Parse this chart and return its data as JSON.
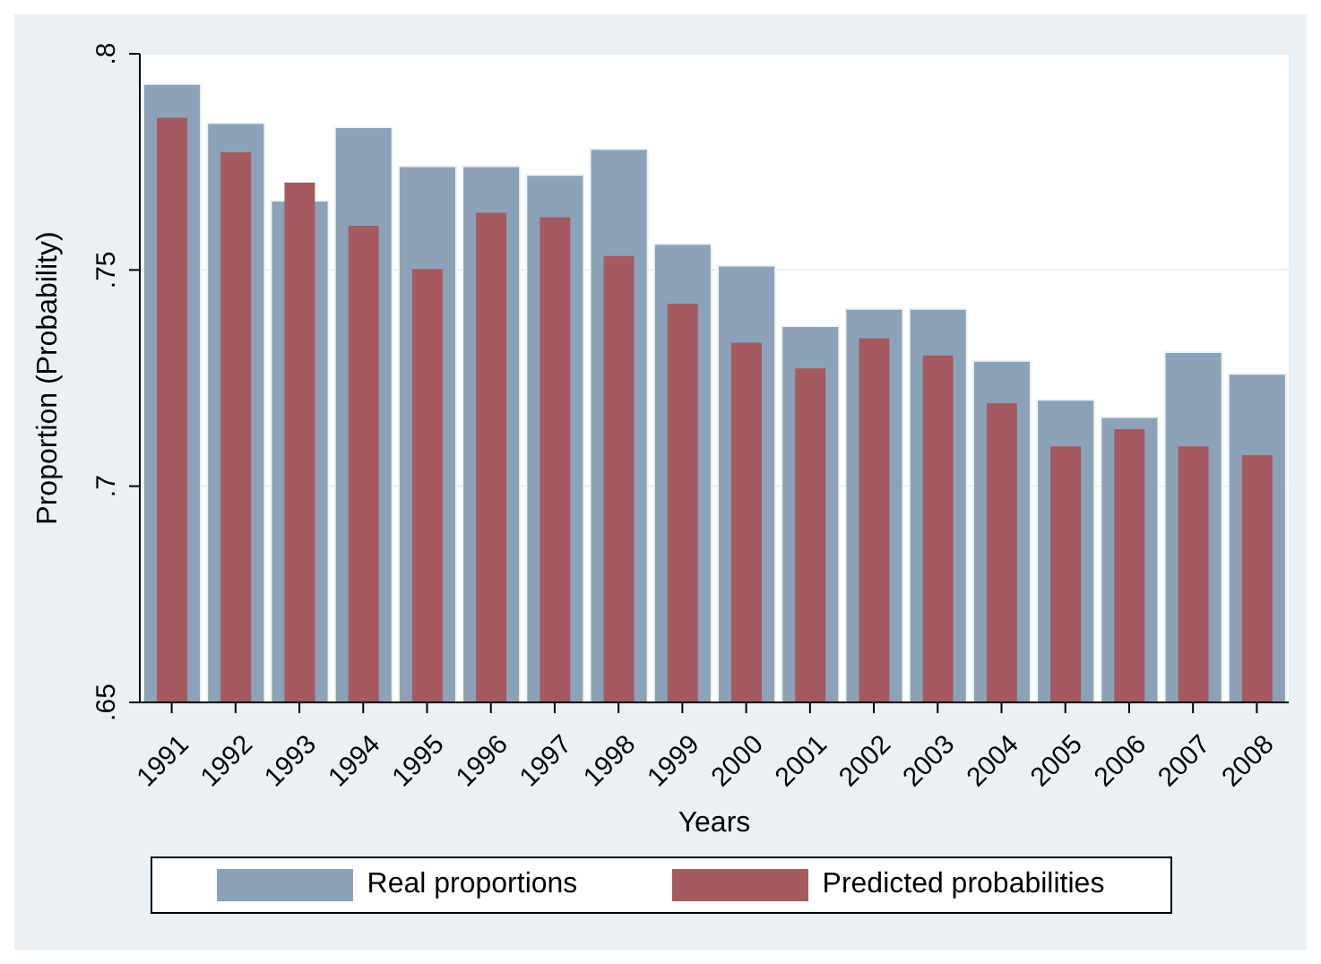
{
  "chart_data": {
    "type": "bar",
    "xlabel": "Years",
    "ylabel": "Proportion (Probability)",
    "categories": [
      "1991",
      "1992",
      "1993",
      "1994",
      "1995",
      "1996",
      "1997",
      "1998",
      "1999",
      "2000",
      "2001",
      "2002",
      "2003",
      "2004",
      "2005",
      "2006",
      "2007",
      "2008"
    ],
    "series": [
      {
        "name": "Real proportions",
        "color": "#8ca2b8",
        "values": [
          0.793,
          0.784,
          0.766,
          0.783,
          0.774,
          0.774,
          0.772,
          0.778,
          0.756,
          0.751,
          0.737,
          0.741,
          0.741,
          0.729,
          0.72,
          0.716,
          0.731,
          0.726
        ]
      },
      {
        "name": "Predicted probabilities",
        "color": "#a55a60",
        "values": [
          0.785,
          0.777,
          0.77,
          0.76,
          0.75,
          0.763,
          0.762,
          0.753,
          0.742,
          0.733,
          0.727,
          0.734,
          0.73,
          0.719,
          0.709,
          0.713,
          0.709,
          0.707
        ]
      }
    ],
    "ylim": [
      0.65,
      0.8
    ],
    "yticks": [
      {
        "value": 0.65,
        "label": ".65"
      },
      {
        "value": 0.7,
        "label": ".7"
      },
      {
        "value": 0.75,
        "label": ".75"
      },
      {
        "value": 0.8,
        "label": ".8"
      }
    ],
    "grid": "y",
    "legend": "bottom"
  }
}
